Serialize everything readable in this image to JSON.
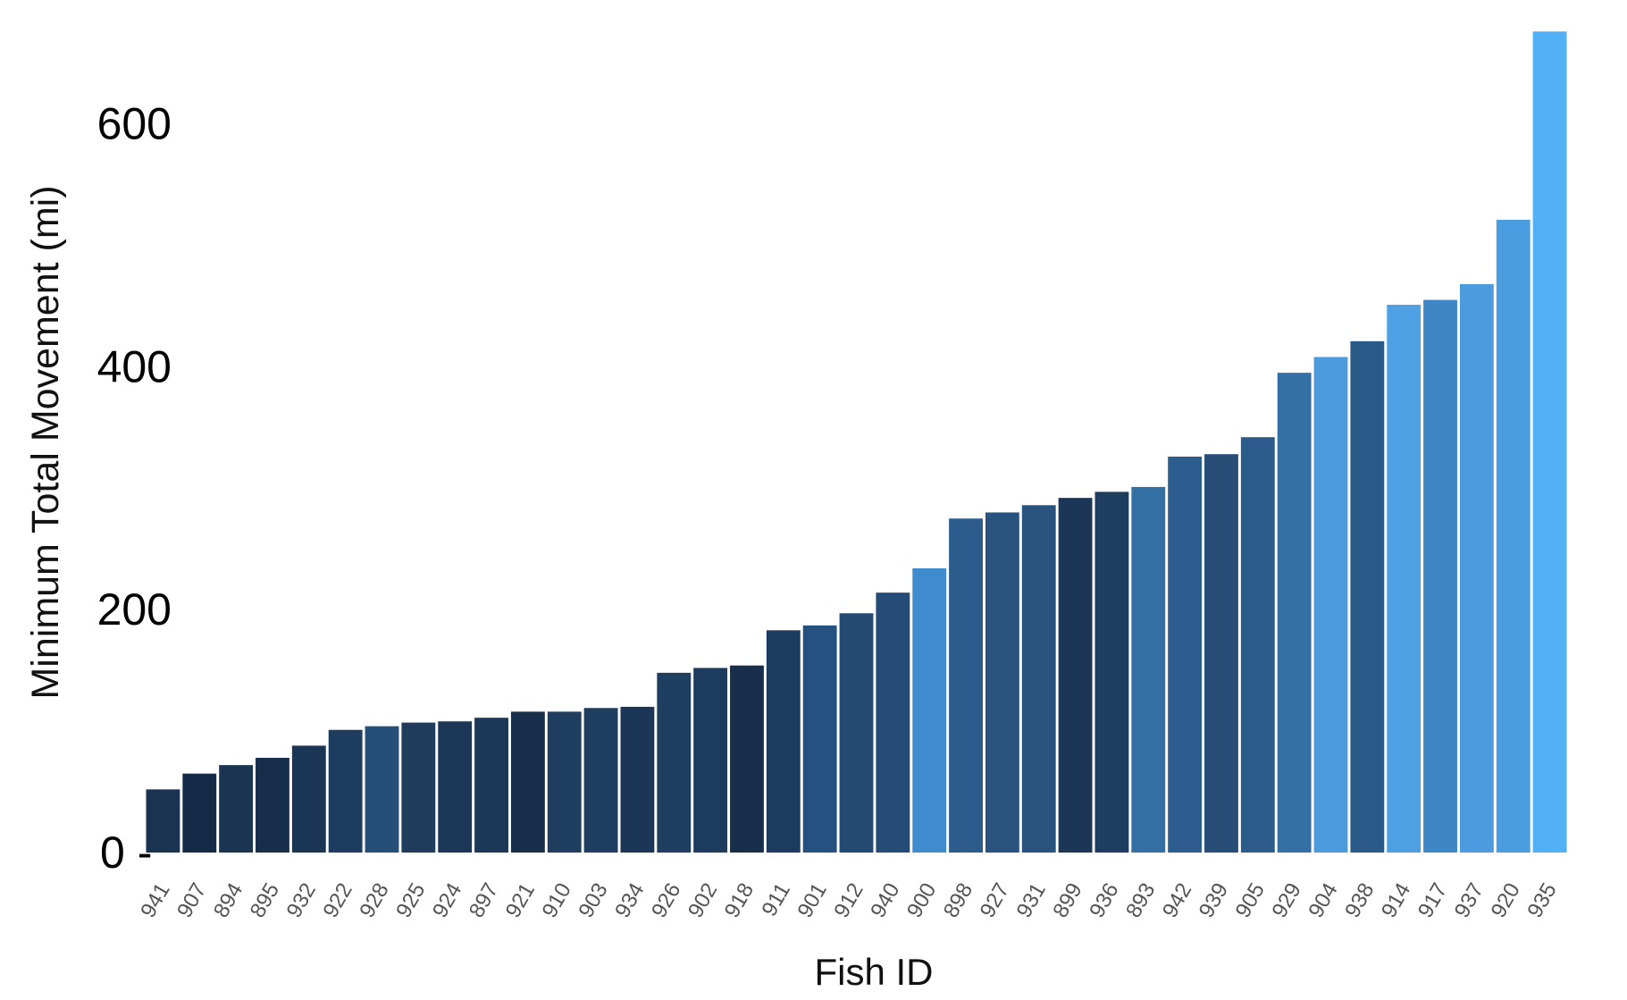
{
  "chart_data": {
    "type": "bar",
    "title": "",
    "xlabel": "Fish ID",
    "ylabel": "Minimum Total Movement  (mi)",
    "ylim": [
      0,
      660
    ],
    "yticks": [
      0,
      200,
      400,
      600
    ],
    "ytick_labels": [
      "0 -",
      "200",
      "400",
      "600"
    ],
    "grid": false,
    "legend": "none",
    "categories": [
      "941",
      "907",
      "894",
      "895",
      "932",
      "922",
      "928",
      "925",
      "924",
      "897",
      "921",
      "910",
      "903",
      "934",
      "926",
      "902",
      "918",
      "911",
      "901",
      "912",
      "940",
      "900",
      "898",
      "927",
      "931",
      "899",
      "936",
      "893",
      "942",
      "939",
      "905",
      "929",
      "904",
      "938",
      "914",
      "917",
      "937",
      "920",
      "935"
    ],
    "values": [
      52,
      65,
      72,
      78,
      88,
      101,
      104,
      107,
      108,
      111,
      116,
      116,
      119,
      120,
      148,
      152,
      154,
      183,
      187,
      197,
      214,
      234,
      275,
      280,
      286,
      292,
      297,
      301,
      326,
      328,
      342,
      395,
      408,
      421,
      451,
      455,
      468,
      521,
      676
    ],
    "colors": [
      "#1a3350",
      "#132b46",
      "#1a3452",
      "#182f4c",
      "#1b3654",
      "#1e3c5e",
      "#254f78",
      "#1f3c5c",
      "#1c3757",
      "#1c3858",
      "#172f4b",
      "#1f3e60",
      "#1e3d5f",
      "#1b3656",
      "#1f3e60",
      "#1d3b5c",
      "#182f4c",
      "#1d3b5c",
      "#255180",
      "#234a72",
      "#244c77",
      "#3f8bcd",
      "#2b5c8c",
      "#28537f",
      "#28537f",
      "#1b3656",
      "#1e3d5f",
      "#3570a4",
      "#2c5d8e",
      "#284e78",
      "#2b5c8c",
      "#3570a4",
      "#4c9bdf",
      "#2a5a88",
      "#4ea0e2",
      "#3f86c6",
      "#4c9bdf",
      "#4a9ddf",
      "#52b1f5"
    ]
  }
}
